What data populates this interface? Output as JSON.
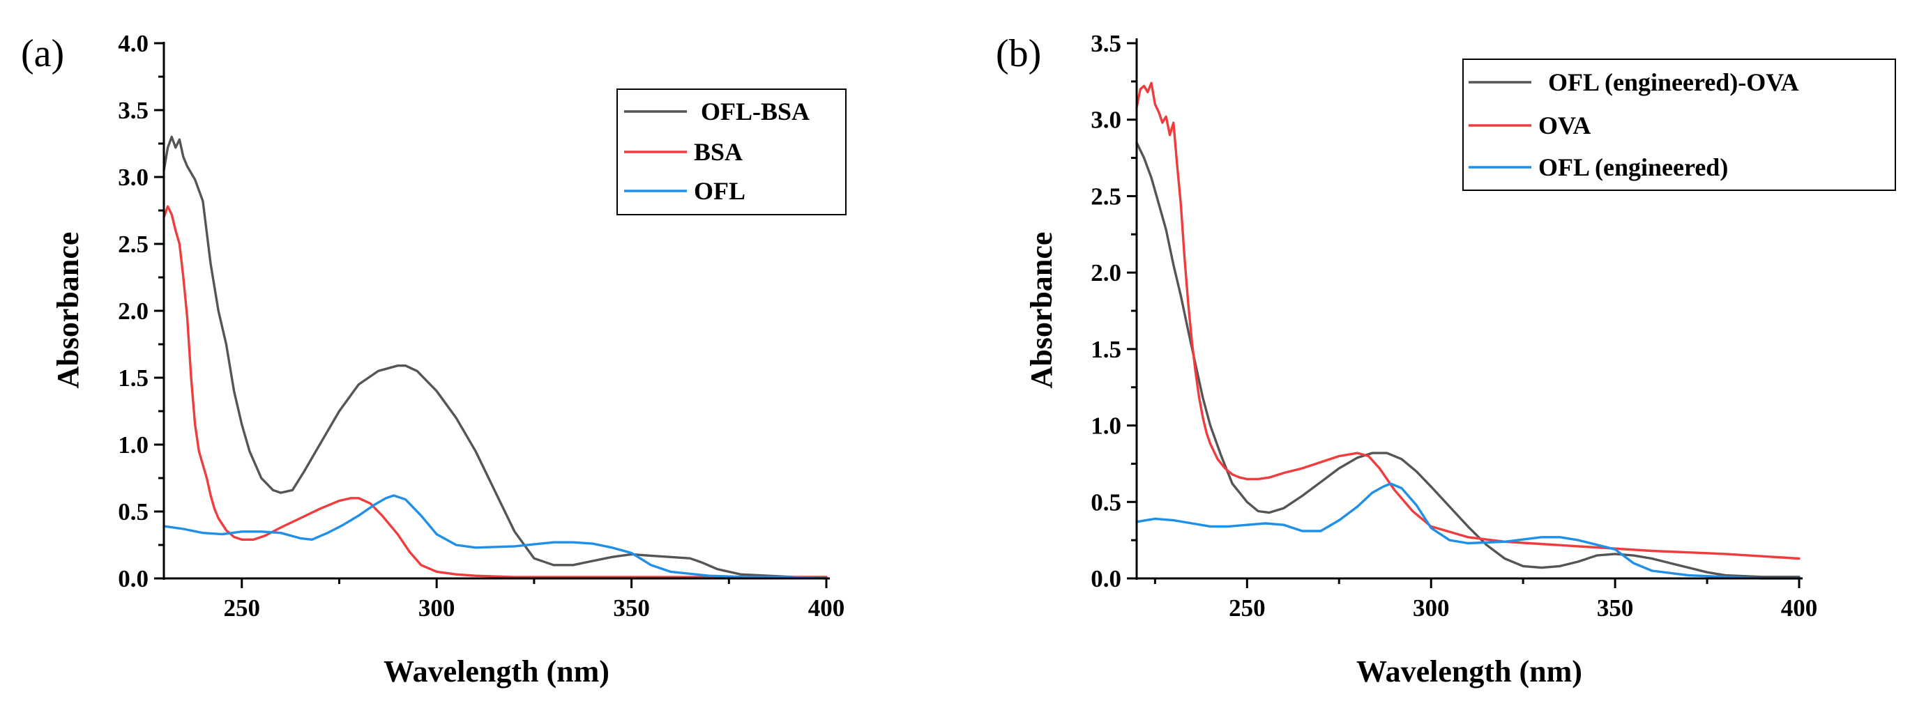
{
  "chart_data": [
    {
      "type": "line",
      "panel_label": "(a)",
      "title": "",
      "xlabel": "Wavelength (nm)",
      "ylabel": "Absorbance",
      "xlim": [
        230,
        400
      ],
      "ylim": [
        0,
        4.0
      ],
      "xticks": [
        250,
        300,
        350,
        400
      ],
      "xtick_labels": [
        "250",
        "300",
        "350",
        "400"
      ],
      "yticks": [
        0.0,
        0.5,
        1.0,
        1.5,
        2.0,
        2.5,
        3.0,
        3.5,
        4.0
      ],
      "ytick_labels": [
        "0.0",
        "0.5",
        "1.0",
        "1.5",
        "2.0",
        "2.5",
        "3.0",
        "3.5",
        "4.0"
      ],
      "legend_position": "top-right",
      "series": [
        {
          "name": "OFL-BSA",
          "color": "#555555",
          "x": [
            230,
            231,
            232,
            233,
            234,
            235,
            236,
            238,
            240,
            242,
            244,
            246,
            248,
            250,
            252,
            255,
            258,
            260,
            263,
            266,
            270,
            275,
            280,
            285,
            290,
            292,
            295,
            300,
            305,
            310,
            315,
            320,
            325,
            330,
            335,
            340,
            345,
            350,
            355,
            360,
            365,
            368,
            372,
            378,
            385,
            392,
            400
          ],
          "y": [
            3.05,
            3.22,
            3.3,
            3.22,
            3.28,
            3.15,
            3.08,
            2.98,
            2.82,
            2.35,
            2.0,
            1.75,
            1.4,
            1.15,
            0.95,
            0.75,
            0.66,
            0.64,
            0.66,
            0.8,
            1.0,
            1.25,
            1.45,
            1.55,
            1.59,
            1.59,
            1.55,
            1.4,
            1.2,
            0.95,
            0.65,
            0.35,
            0.15,
            0.1,
            0.1,
            0.13,
            0.16,
            0.18,
            0.17,
            0.16,
            0.15,
            0.12,
            0.07,
            0.03,
            0.02,
            0.01,
            0.01
          ]
        },
        {
          "name": "BSA",
          "color": "#f03c3c",
          "x": [
            230,
            231,
            232,
            233,
            234,
            235,
            236,
            237,
            238,
            239,
            240,
            241,
            242,
            243,
            244,
            246,
            248,
            250,
            253,
            256,
            260,
            265,
            270,
            275,
            278,
            280,
            283,
            286,
            290,
            293,
            296,
            300,
            305,
            310,
            320,
            340,
            360,
            380,
            400
          ],
          "y": [
            2.7,
            2.78,
            2.72,
            2.6,
            2.5,
            2.25,
            1.95,
            1.5,
            1.15,
            0.95,
            0.85,
            0.75,
            0.62,
            0.52,
            0.45,
            0.36,
            0.31,
            0.29,
            0.29,
            0.32,
            0.38,
            0.45,
            0.52,
            0.58,
            0.6,
            0.6,
            0.56,
            0.47,
            0.33,
            0.2,
            0.1,
            0.05,
            0.03,
            0.02,
            0.01,
            0.01,
            0.01,
            0.01,
            0.01
          ]
        },
        {
          "name": "OFL",
          "color": "#1f8fe8",
          "x": [
            230,
            235,
            240,
            245,
            250,
            255,
            260,
            265,
            268,
            272,
            276,
            280,
            284,
            287,
            289,
            292,
            296,
            300,
            305,
            310,
            320,
            330,
            335,
            340,
            345,
            350,
            355,
            360,
            370,
            380,
            390,
            400
          ],
          "y": [
            0.39,
            0.37,
            0.34,
            0.33,
            0.35,
            0.35,
            0.34,
            0.3,
            0.29,
            0.34,
            0.4,
            0.47,
            0.55,
            0.6,
            0.62,
            0.59,
            0.47,
            0.33,
            0.25,
            0.23,
            0.24,
            0.27,
            0.27,
            0.26,
            0.23,
            0.19,
            0.1,
            0.05,
            0.02,
            0.01,
            0.01,
            0.0
          ]
        }
      ]
    },
    {
      "type": "line",
      "panel_label": "(b)",
      "title": "",
      "xlabel": "Wavelength (nm)",
      "ylabel": "Absorbance",
      "xlim": [
        220,
        400
      ],
      "ylim": [
        0,
        3.5
      ],
      "xticks": [
        250,
        300,
        350,
        400
      ],
      "xtick_labels": [
        "250",
        "300",
        "350",
        "400"
      ],
      "yticks": [
        0.0,
        0.5,
        1.0,
        1.5,
        2.0,
        2.5,
        3.0,
        3.5
      ],
      "ytick_labels": [
        "0.0",
        "0.5",
        "1.0",
        "1.5",
        "2.0",
        "2.5",
        "3.0",
        "3.5"
      ],
      "legend_position": "top-right",
      "series": [
        {
          "name": "OFL (engineered)-OVA",
          "color": "#555555",
          "x": [
            220,
            222,
            224,
            226,
            228,
            230,
            232,
            234,
            236,
            238,
            240,
            243,
            246,
            250,
            253,
            256,
            260,
            265,
            270,
            275,
            280,
            284,
            288,
            292,
            296,
            300,
            305,
            310,
            315,
            320,
            325,
            330,
            335,
            340,
            345,
            350,
            355,
            360,
            365,
            370,
            375,
            380,
            390,
            400
          ],
          "y": [
            2.85,
            2.75,
            2.62,
            2.45,
            2.28,
            2.05,
            1.85,
            1.62,
            1.4,
            1.18,
            1.0,
            0.8,
            0.62,
            0.5,
            0.44,
            0.43,
            0.46,
            0.54,
            0.63,
            0.72,
            0.79,
            0.82,
            0.82,
            0.78,
            0.7,
            0.6,
            0.47,
            0.34,
            0.22,
            0.13,
            0.08,
            0.07,
            0.08,
            0.11,
            0.15,
            0.16,
            0.15,
            0.13,
            0.1,
            0.07,
            0.04,
            0.02,
            0.01,
            0.01
          ]
        },
        {
          "name": "OVA",
          "color": "#f03c3c",
          "x": [
            220,
            221,
            222,
            223,
            224,
            225,
            226,
            227,
            228,
            229,
            230,
            231,
            232,
            233,
            234,
            235,
            236,
            237,
            238,
            239,
            240,
            242,
            244,
            246,
            248,
            250,
            253,
            256,
            260,
            265,
            270,
            275,
            280,
            283,
            286,
            290,
            295,
            300,
            310,
            320,
            340,
            360,
            380,
            400
          ],
          "y": [
            3.08,
            3.2,
            3.22,
            3.18,
            3.24,
            3.1,
            3.05,
            2.98,
            3.02,
            2.9,
            2.98,
            2.7,
            2.45,
            2.1,
            1.8,
            1.55,
            1.35,
            1.18,
            1.05,
            0.95,
            0.88,
            0.78,
            0.72,
            0.68,
            0.66,
            0.65,
            0.65,
            0.66,
            0.69,
            0.72,
            0.76,
            0.8,
            0.82,
            0.8,
            0.72,
            0.58,
            0.44,
            0.34,
            0.27,
            0.24,
            0.21,
            0.18,
            0.16,
            0.13
          ]
        },
        {
          "name": "OFL (engineered)",
          "color": "#1f8fe8",
          "x": [
            220,
            225,
            230,
            235,
            240,
            245,
            250,
            255,
            260,
            265,
            270,
            275,
            280,
            284,
            287,
            289,
            292,
            296,
            300,
            305,
            310,
            320,
            330,
            335,
            340,
            345,
            350,
            355,
            360,
            370,
            380,
            390,
            400
          ],
          "y": [
            0.37,
            0.39,
            0.38,
            0.36,
            0.34,
            0.34,
            0.35,
            0.36,
            0.35,
            0.31,
            0.31,
            0.38,
            0.47,
            0.56,
            0.6,
            0.62,
            0.59,
            0.48,
            0.33,
            0.25,
            0.23,
            0.24,
            0.27,
            0.27,
            0.25,
            0.22,
            0.19,
            0.1,
            0.05,
            0.02,
            0.01,
            0.0,
            0.0
          ]
        }
      ]
    }
  ]
}
